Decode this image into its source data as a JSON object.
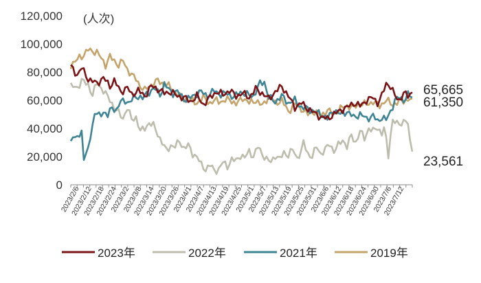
{
  "chart_data": {
    "type": "line",
    "unit_label": "(人次)",
    "ylim": [
      0,
      120000
    ],
    "yticks": [
      "0",
      "20,000",
      "40,000",
      "60,000",
      "80,000",
      "100,000",
      "120,000"
    ],
    "ytick_values": [
      0,
      20000,
      40000,
      60000,
      80000,
      100000,
      120000
    ],
    "x_count": 158,
    "xtick_labels": [
      "2023/2/6",
      "2023/2/12",
      "2023/2/18",
      "2023/2/24",
      "2023/3/2",
      "2023/3/8",
      "2023/3/14",
      "2023/3/20",
      "2023/3/26",
      "2023/4/1",
      "2023/4/7",
      "2023/4/13",
      "2023/4/19",
      "2023/4/25",
      "2023/5/1",
      "2023/5/7",
      "2023/5/13",
      "2023/5/19",
      "2023/5/25",
      "2023/5/31",
      "2023/6/6",
      "2023/6/12",
      "2023/6/18",
      "2023/6/24",
      "2023/6/30",
      "2023/7/6",
      "2023/7/12"
    ],
    "end_labels": [
      {
        "text": "65,665",
        "value": 65665
      },
      {
        "text": "61,350",
        "value": 61350
      },
      {
        "text": "23,561",
        "value": 23561
      }
    ],
    "series": [
      {
        "name": "2023年",
        "color": "#7B1416",
        "points": [
          [
            0,
            84000
          ],
          [
            3,
            78000
          ],
          [
            5,
            83000
          ],
          [
            8,
            75000
          ],
          [
            12,
            72000
          ],
          [
            15,
            76000
          ],
          [
            18,
            70000
          ],
          [
            20,
            74000
          ],
          [
            23,
            66000
          ],
          [
            26,
            69000
          ],
          [
            28,
            64000
          ],
          [
            31,
            67000
          ],
          [
            34,
            63000
          ],
          [
            37,
            70000
          ],
          [
            40,
            68000
          ],
          [
            43,
            65000
          ],
          [
            46,
            66000
          ],
          [
            49,
            63000
          ],
          [
            52,
            62000
          ],
          [
            55,
            59000
          ],
          [
            58,
            63000
          ],
          [
            61,
            57000
          ],
          [
            64,
            62000
          ],
          [
            67,
            66000
          ],
          [
            70,
            64000
          ],
          [
            73,
            67000
          ],
          [
            76,
            63000
          ],
          [
            79,
            65000
          ],
          [
            82,
            62000
          ],
          [
            85,
            68000
          ],
          [
            88,
            65000
          ],
          [
            91,
            61000
          ],
          [
            94,
            66000
          ],
          [
            97,
            70000
          ],
          [
            100,
            63000
          ],
          [
            103,
            55000
          ],
          [
            106,
            58000
          ],
          [
            109,
            54000
          ],
          [
            112,
            51000
          ],
          [
            115,
            48000
          ],
          [
            118,
            47000
          ],
          [
            121,
            50000
          ],
          [
            124,
            53000
          ],
          [
            127,
            55000
          ],
          [
            130,
            58000
          ],
          [
            133,
            56000
          ],
          [
            136,
            60000
          ],
          [
            139,
            62000
          ],
          [
            141,
            58000
          ],
          [
            143,
            63000
          ],
          [
            145,
            72000
          ],
          [
            147,
            70000
          ],
          [
            149,
            63000
          ],
          [
            151,
            60000
          ],
          [
            153,
            65000
          ],
          [
            155,
            63000
          ],
          [
            157,
            65665
          ]
        ]
      },
      {
        "name": "2022年",
        "color": "#BDBDAE",
        "points": [
          [
            0,
            70000
          ],
          [
            3,
            69000
          ],
          [
            5,
            74000
          ],
          [
            8,
            71000
          ],
          [
            10,
            64000
          ],
          [
            12,
            72000
          ],
          [
            15,
            67000
          ],
          [
            18,
            60000
          ],
          [
            20,
            55000
          ],
          [
            22,
            51000
          ],
          [
            24,
            47000
          ],
          [
            26,
            55000
          ],
          [
            28,
            46000
          ],
          [
            30,
            48000
          ],
          [
            32,
            38000
          ],
          [
            34,
            40000
          ],
          [
            36,
            44000
          ],
          [
            38,
            42000
          ],
          [
            40,
            36000
          ],
          [
            42,
            30000
          ],
          [
            44,
            24000
          ],
          [
            46,
            28000
          ],
          [
            48,
            27000
          ],
          [
            50,
            31000
          ],
          [
            52,
            26000
          ],
          [
            54,
            28000
          ],
          [
            56,
            22000
          ],
          [
            58,
            20000
          ],
          [
            60,
            14000
          ],
          [
            62,
            11000
          ],
          [
            64,
            14000
          ],
          [
            66,
            10000
          ],
          [
            68,
            11000
          ],
          [
            70,
            16000
          ],
          [
            72,
            13000
          ],
          [
            74,
            18000
          ],
          [
            76,
            17000
          ],
          [
            78,
            21000
          ],
          [
            80,
            19000
          ],
          [
            82,
            24000
          ],
          [
            84,
            20000
          ],
          [
            86,
            27000
          ],
          [
            88,
            22000
          ],
          [
            90,
            18000
          ],
          [
            92,
            16000
          ],
          [
            94,
            21000
          ],
          [
            96,
            18000
          ],
          [
            98,
            23000
          ],
          [
            100,
            21000
          ],
          [
            102,
            25000
          ],
          [
            104,
            19000
          ],
          [
            106,
            24000
          ],
          [
            107,
            30000
          ],
          [
            109,
            22000
          ],
          [
            111,
            20000
          ],
          [
            113,
            27000
          ],
          [
            115,
            22000
          ],
          [
            117,
            25000
          ],
          [
            119,
            29000
          ],
          [
            121,
            24000
          ],
          [
            123,
            28000
          ],
          [
            125,
            32000
          ],
          [
            127,
            27000
          ],
          [
            129,
            35000
          ],
          [
            131,
            30000
          ],
          [
            133,
            38000
          ],
          [
            135,
            33000
          ],
          [
            137,
            40000
          ],
          [
            139,
            38000
          ],
          [
            141,
            41000
          ],
          [
            143,
            36000
          ],
          [
            144,
            40000
          ],
          [
            145,
            32000
          ],
          [
            146,
            21000
          ],
          [
            147,
            35000
          ],
          [
            148,
            46000
          ],
          [
            150,
            43000
          ],
          [
            152,
            44000
          ],
          [
            154,
            46000
          ],
          [
            155,
            42000
          ],
          [
            156,
            30000
          ],
          [
            157,
            23561
          ]
        ]
      },
      {
        "name": "2021年",
        "color": "#3E8494",
        "points": [
          [
            0,
            32000
          ],
          [
            1,
            34000
          ],
          [
            2,
            31000
          ],
          [
            3,
            36000
          ],
          [
            4,
            35000
          ],
          [
            5,
            38000
          ],
          [
            6,
            19000
          ],
          [
            7,
            20000
          ],
          [
            8,
            26000
          ],
          [
            9,
            35000
          ],
          [
            10,
            42000
          ],
          [
            11,
            51000
          ],
          [
            12,
            50000
          ],
          [
            13,
            49000
          ],
          [
            15,
            52000
          ],
          [
            17,
            49000
          ],
          [
            19,
            55000
          ],
          [
            21,
            53000
          ],
          [
            23,
            59000
          ],
          [
            25,
            60000
          ],
          [
            27,
            58000
          ],
          [
            29,
            62000
          ],
          [
            31,
            63000
          ],
          [
            33,
            61000
          ],
          [
            35,
            65000
          ],
          [
            37,
            67000
          ],
          [
            39,
            68000
          ],
          [
            41,
            64000
          ],
          [
            43,
            71000
          ],
          [
            45,
            68000
          ],
          [
            47,
            65000
          ],
          [
            49,
            66000
          ],
          [
            51,
            63000
          ],
          [
            53,
            60000
          ],
          [
            55,
            62000
          ],
          [
            57,
            64000
          ],
          [
            60,
            66000
          ],
          [
            63,
            63000
          ],
          [
            66,
            67000
          ],
          [
            69,
            64000
          ],
          [
            72,
            65000
          ],
          [
            75,
            62000
          ],
          [
            78,
            66000
          ],
          [
            81,
            64000
          ],
          [
            84,
            63000
          ],
          [
            87,
            72000
          ],
          [
            89,
            73000
          ],
          [
            91,
            62000
          ],
          [
            94,
            59000
          ],
          [
            97,
            63000
          ],
          [
            100,
            58000
          ],
          [
            103,
            60000
          ],
          [
            106,
            55000
          ],
          [
            109,
            54000
          ],
          [
            112,
            52000
          ],
          [
            115,
            50000
          ],
          [
            118,
            47000
          ],
          [
            121,
            53000
          ],
          [
            124,
            50000
          ],
          [
            127,
            52000
          ],
          [
            130,
            48000
          ],
          [
            133,
            50000
          ],
          [
            136,
            47000
          ],
          [
            139,
            49000
          ],
          [
            141,
            45000
          ],
          [
            143,
            48000
          ],
          [
            145,
            46000
          ],
          [
            147,
            52000
          ],
          [
            149,
            60000
          ],
          [
            151,
            62000
          ],
          [
            153,
            60000
          ],
          [
            155,
            64000
          ],
          [
            157,
            62000
          ]
        ]
      },
      {
        "name": "2019年",
        "color": "#C4A46A",
        "points": [
          [
            0,
            85000
          ],
          [
            2,
            87000
          ],
          [
            4,
            91000
          ],
          [
            6,
            92000
          ],
          [
            8,
            96000
          ],
          [
            10,
            95000
          ],
          [
            12,
            94000
          ],
          [
            14,
            90000
          ],
          [
            16,
            85000
          ],
          [
            18,
            91000
          ],
          [
            20,
            88000
          ],
          [
            22,
            85000
          ],
          [
            24,
            88000
          ],
          [
            26,
            82000
          ],
          [
            28,
            78000
          ],
          [
            30,
            75000
          ],
          [
            32,
            70000
          ],
          [
            34,
            67000
          ],
          [
            36,
            70000
          ],
          [
            38,
            72000
          ],
          [
            40,
            74000
          ],
          [
            42,
            72000
          ],
          [
            44,
            71000
          ],
          [
            46,
            69000
          ],
          [
            48,
            66000
          ],
          [
            50,
            63000
          ],
          [
            52,
            61000
          ],
          [
            55,
            60000
          ],
          [
            58,
            58000
          ],
          [
            61,
            62000
          ],
          [
            64,
            58000
          ],
          [
            67,
            60000
          ],
          [
            70,
            59000
          ],
          [
            73,
            61000
          ],
          [
            76,
            57000
          ],
          [
            79,
            62000
          ],
          [
            82,
            58000
          ],
          [
            85,
            60000
          ],
          [
            88,
            56000
          ],
          [
            91,
            63000
          ],
          [
            94,
            58000
          ],
          [
            97,
            60000
          ],
          [
            100,
            52000
          ],
          [
            103,
            57000
          ],
          [
            106,
            54000
          ],
          [
            109,
            50000
          ],
          [
            112,
            52000
          ],
          [
            115,
            49000
          ],
          [
            118,
            53000
          ],
          [
            121,
            50000
          ],
          [
            124,
            54000
          ],
          [
            127,
            56000
          ],
          [
            130,
            55000
          ],
          [
            133,
            58000
          ],
          [
            136,
            57000
          ],
          [
            139,
            59000
          ],
          [
            142,
            56000
          ],
          [
            145,
            60000
          ],
          [
            148,
            57000
          ],
          [
            151,
            59000
          ],
          [
            154,
            60000
          ],
          [
            157,
            61350
          ]
        ]
      }
    ]
  }
}
